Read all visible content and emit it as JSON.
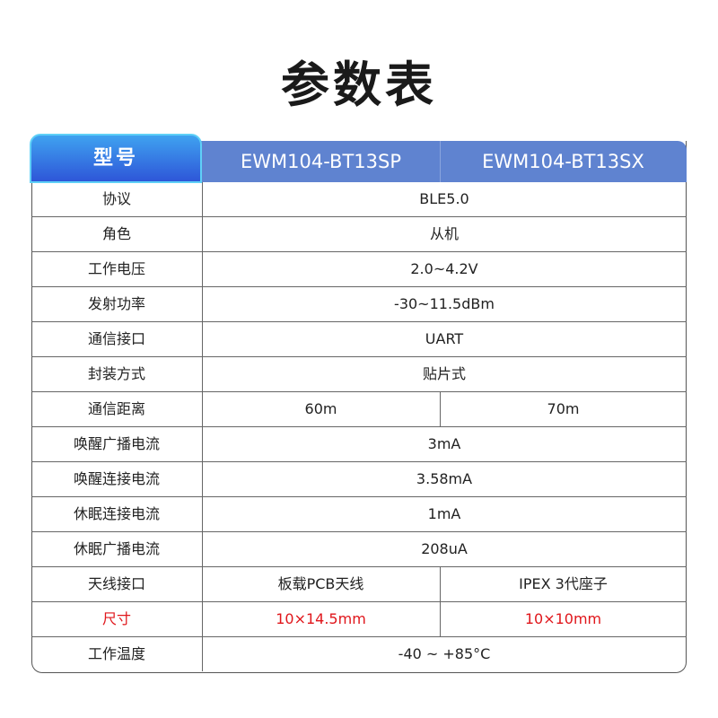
{
  "title": "参数表",
  "header": {
    "label": "型号",
    "models": [
      "EWM104-BT13SP",
      "EWM104-BT13SX"
    ]
  },
  "colors": {
    "header_bg": "#5f83d0",
    "tab_gradient_top": "#3fa2f0",
    "tab_gradient_bottom": "#2e56d8",
    "highlight": "#e0161b"
  },
  "rows": [
    {
      "label": "协议",
      "values": [
        "BLE5.0"
      ]
    },
    {
      "label": "角色",
      "values": [
        "从机"
      ]
    },
    {
      "label": "工作电压",
      "values": [
        "2.0~4.2V"
      ]
    },
    {
      "label": "发射功率",
      "values": [
        "-30~11.5dBm"
      ]
    },
    {
      "label": "通信接口",
      "values": [
        "UART"
      ]
    },
    {
      "label": "封装方式",
      "values": [
        "贴片式"
      ]
    },
    {
      "label": "通信距离",
      "values": [
        "60m",
        "70m"
      ]
    },
    {
      "label": "唤醒广播电流",
      "values": [
        "3mA"
      ]
    },
    {
      "label": "唤醒连接电流",
      "values": [
        "3.58mA"
      ]
    },
    {
      "label": "休眠连接电流",
      "values": [
        "1mA"
      ]
    },
    {
      "label": "休眠广播电流",
      "values": [
        "208uA"
      ]
    },
    {
      "label": "天线接口",
      "values": [
        "板载PCB天线",
        "IPEX 3代座子"
      ]
    },
    {
      "label": "尺寸",
      "values": [
        "10×14.5mm",
        "10×10mm"
      ],
      "highlight": true
    },
    {
      "label": "工作温度",
      "values": [
        "-40 ~ +85°C"
      ]
    }
  ]
}
